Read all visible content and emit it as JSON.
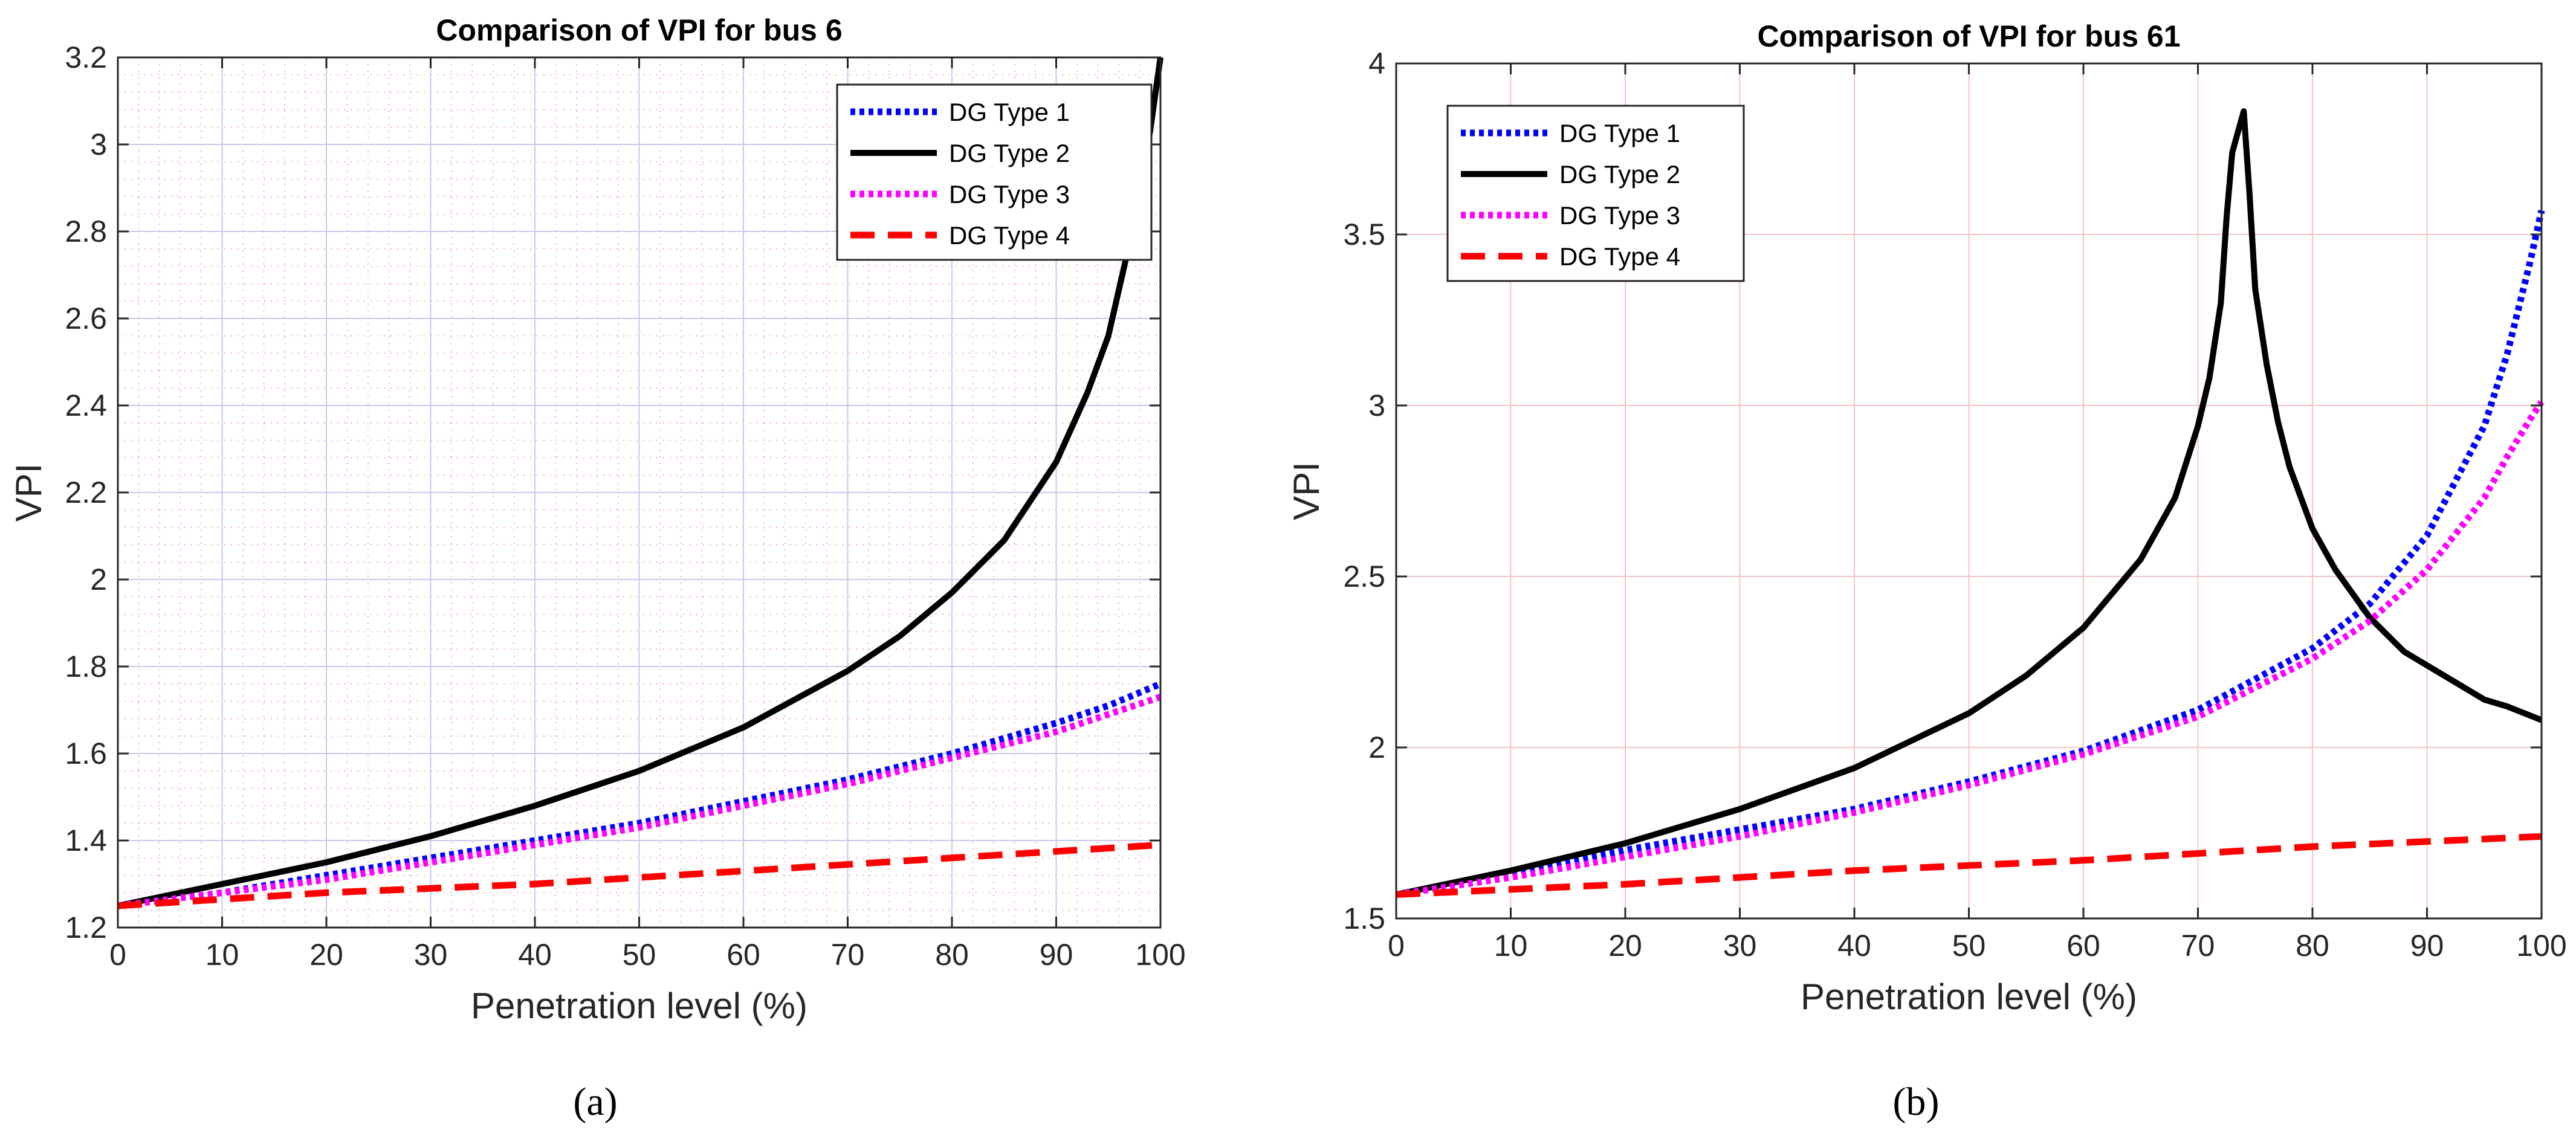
{
  "chart_data": [
    {
      "type": "line",
      "title": "Comparison of VPI for bus 6",
      "xlabel": "Penetration level (%)",
      "ylabel": "VPI",
      "xlim": [
        0,
        100
      ],
      "ylim": [
        1.2,
        3.2
      ],
      "xticks": [
        "0",
        "10",
        "20",
        "30",
        "40",
        "50",
        "60",
        "70",
        "80",
        "90",
        "100"
      ],
      "yticks": [
        "1.2",
        "1.4",
        "1.6",
        "1.8",
        "2",
        "2.2",
        "2.4",
        "2.6",
        "2.8",
        "3",
        "3.2"
      ],
      "grid": true,
      "minor_grid": true,
      "legend_position": "top-right",
      "caption": "(a)",
      "series": [
        {
          "name": "DG Type 1",
          "color": "#0000ff",
          "style": "dotted",
          "x": [
            0,
            10,
            20,
            30,
            40,
            50,
            60,
            70,
            80,
            90,
            95,
            100
          ],
          "y": [
            1.25,
            1.28,
            1.32,
            1.36,
            1.4,
            1.44,
            1.49,
            1.54,
            1.6,
            1.67,
            1.71,
            1.76
          ]
        },
        {
          "name": "DG Type 2",
          "color": "#000000",
          "style": "solid",
          "x": [
            0,
            10,
            20,
            30,
            40,
            50,
            60,
            70,
            75,
            80,
            85,
            90,
            93,
            95,
            97,
            98,
            99,
            100
          ],
          "y": [
            1.25,
            1.3,
            1.35,
            1.41,
            1.48,
            1.56,
            1.66,
            1.79,
            1.87,
            1.97,
            2.09,
            2.27,
            2.43,
            2.56,
            2.77,
            2.9,
            3.03,
            3.2
          ]
        },
        {
          "name": "DG Type 3",
          "color": "#ff00ff",
          "style": "dotted",
          "x": [
            0,
            10,
            20,
            30,
            40,
            50,
            60,
            70,
            80,
            90,
            95,
            100
          ],
          "y": [
            1.25,
            1.28,
            1.31,
            1.35,
            1.39,
            1.43,
            1.48,
            1.53,
            1.59,
            1.65,
            1.69,
            1.73
          ]
        },
        {
          "name": "DG Type 4",
          "color": "#ff0000",
          "style": "dashed",
          "x": [
            0,
            20,
            40,
            60,
            80,
            100
          ],
          "y": [
            1.25,
            1.28,
            1.3,
            1.33,
            1.36,
            1.39
          ]
        }
      ]
    },
    {
      "type": "line",
      "title": "Comparison of VPI for bus 61",
      "xlabel": "Penetration level (%)",
      "ylabel": "VPI",
      "xlim": [
        0,
        100
      ],
      "ylim": [
        1.5,
        4
      ],
      "xticks": [
        "0",
        "10",
        "20",
        "30",
        "40",
        "50",
        "60",
        "70",
        "80",
        "90",
        "100"
      ],
      "yticks": [
        "1.5",
        "2",
        "2.5",
        "3",
        "3.5",
        "4"
      ],
      "grid": true,
      "minor_grid": false,
      "legend_position": "top-left",
      "caption": "(b)",
      "series": [
        {
          "name": "DG Type 1",
          "color": "#0000ff",
          "style": "dotted",
          "x": [
            0,
            10,
            20,
            30,
            40,
            50,
            60,
            70,
            80,
            85,
            90,
            95,
            97,
            99,
            100
          ],
          "y": [
            1.57,
            1.63,
            1.7,
            1.76,
            1.82,
            1.9,
            1.99,
            2.11,
            2.29,
            2.42,
            2.62,
            2.94,
            3.15,
            3.42,
            3.57
          ]
        },
        {
          "name": "DG Type 2",
          "color": "#000000",
          "style": "solid",
          "x": [
            0,
            10,
            20,
            30,
            40,
            50,
            55,
            60,
            65,
            68,
            70,
            71,
            72,
            72.5,
            73,
            73.5,
            74,
            74.5,
            75,
            76,
            77,
            78,
            80,
            82,
            85,
            88,
            90,
            93,
            95,
            97,
            100
          ],
          "y": [
            1.57,
            1.64,
            1.72,
            1.82,
            1.94,
            2.1,
            2.21,
            2.35,
            2.55,
            2.73,
            2.94,
            3.08,
            3.3,
            3.55,
            3.74,
            3.8,
            3.86,
            3.62,
            3.34,
            3.12,
            2.95,
            2.82,
            2.64,
            2.52,
            2.38,
            2.28,
            2.24,
            2.18,
            2.14,
            2.12,
            2.08
          ]
        },
        {
          "name": "DG Type 3",
          "color": "#ff00ff",
          "style": "dotted",
          "x": [
            0,
            10,
            20,
            30,
            40,
            50,
            60,
            70,
            80,
            85,
            90,
            95,
            97,
            99,
            100
          ],
          "y": [
            1.57,
            1.62,
            1.68,
            1.74,
            1.81,
            1.89,
            1.98,
            2.09,
            2.26,
            2.37,
            2.52,
            2.73,
            2.85,
            2.96,
            3.01
          ]
        },
        {
          "name": "DG Type 4",
          "color": "#ff0000",
          "style": "dashed",
          "x": [
            0,
            20,
            40,
            60,
            80,
            100
          ],
          "y": [
            1.57,
            1.6,
            1.64,
            1.67,
            1.71,
            1.74
          ]
        }
      ]
    }
  ]
}
